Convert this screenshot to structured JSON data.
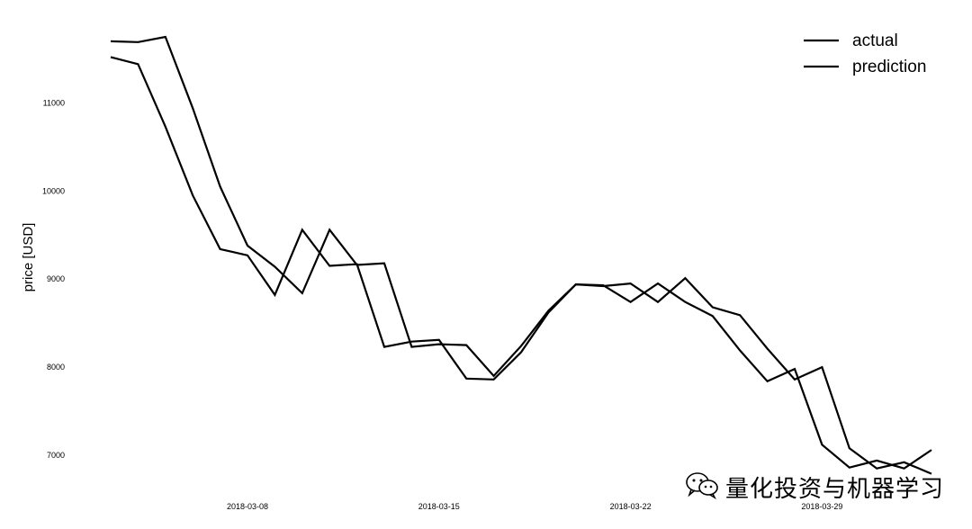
{
  "chart_data": {
    "type": "line",
    "ylabel": "price [USD]",
    "ylim": [
      6600,
      11900
    ],
    "y_ticks": [
      7000,
      8000,
      9000,
      10000,
      11000
    ],
    "x_ticks": [
      {
        "label": "2018-03-08",
        "day": 8
      },
      {
        "label": "2018-03-15",
        "day": 15
      },
      {
        "label": "2018-03-22",
        "day": 22
      },
      {
        "label": "2018-03-29",
        "day": 29
      }
    ],
    "grid": false,
    "legend_position": "top-right",
    "x": [
      3,
      4,
      5,
      6,
      7,
      8,
      9,
      10,
      11,
      12,
      13,
      14,
      15,
      16,
      17,
      18,
      19,
      20,
      21,
      22,
      23,
      24,
      25,
      26,
      27,
      28,
      29,
      30,
      31,
      32,
      33
    ],
    "series": [
      {
        "name": "actual",
        "values": [
          11700,
          11690,
          11750,
          10940,
          10050,
          9380,
          9140,
          8840,
          9560,
          9160,
          9180,
          8230,
          8260,
          8250,
          7900,
          8240,
          8640,
          8940,
          8930,
          8740,
          8950,
          8740,
          8580,
          8190,
          7840,
          7980,
          7120,
          6860,
          6940,
          6850,
          7060
        ]
      },
      {
        "name": "prediction",
        "values": [
          11520,
          11440,
          10730,
          9950,
          9340,
          9270,
          8820,
          9560,
          9150,
          9170,
          8230,
          8290,
          8310,
          7870,
          7860,
          8170,
          8620,
          8940,
          8920,
          8950,
          8740,
          9010,
          8680,
          8590,
          8210,
          7860,
          8000,
          7080,
          6850,
          6920,
          6790
        ]
      }
    ]
  },
  "watermark": {
    "icon": "wechat-icon",
    "text": "量化投资与机器学习"
  }
}
